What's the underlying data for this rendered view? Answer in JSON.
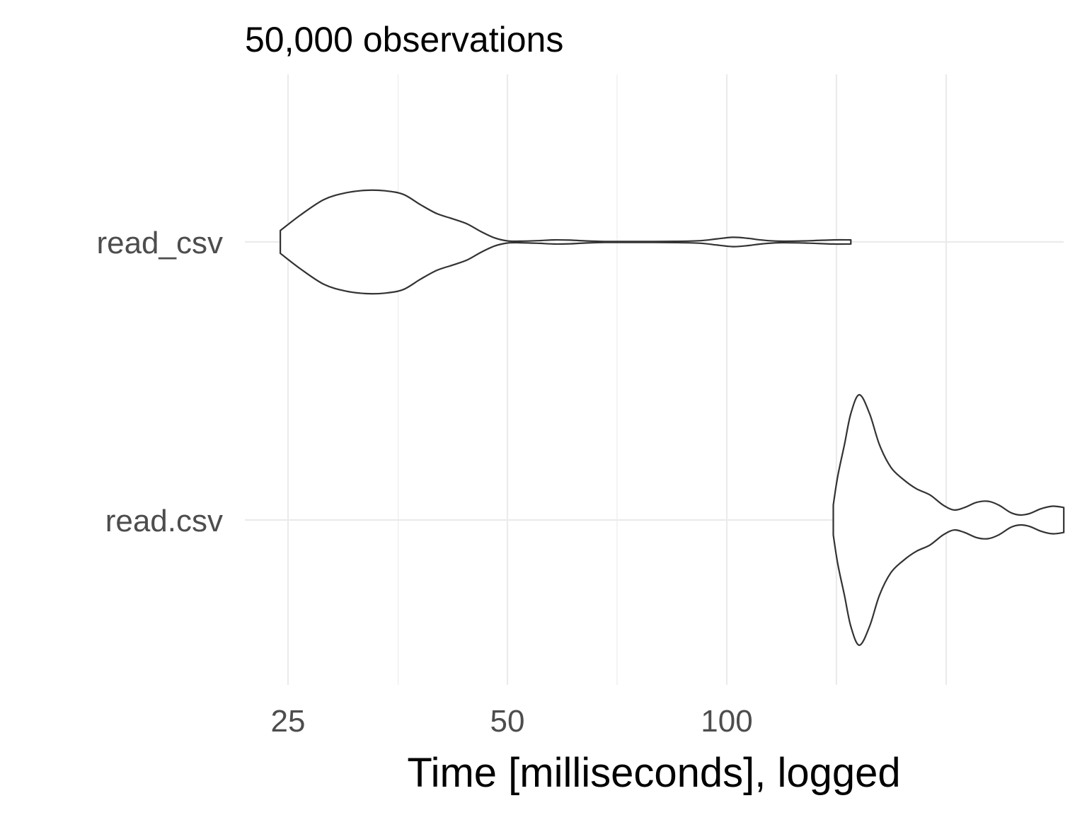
{
  "chart_data": {
    "type": "violin",
    "title": "50,000 observations",
    "xlabel": "Time [milliseconds], logged",
    "ylabel": "",
    "x_scale": "log2",
    "xlim": [
      24,
      300
    ],
    "x_ticks": [
      25,
      50,
      100
    ],
    "x_minor_ticks": [
      35.4,
      70.7,
      141.4,
      200
    ],
    "grid": true,
    "categories": [
      "read_csv",
      "read.csv"
    ],
    "series": [
      {
        "category": "read_csv",
        "min": 24.4,
        "max": 148,
        "density": [
          [
            24.4,
            0.22
          ],
          [
            26,
            0.52
          ],
          [
            28,
            0.82
          ],
          [
            30,
            0.95
          ],
          [
            32,
            1.0
          ],
          [
            34,
            0.99
          ],
          [
            36,
            0.92
          ],
          [
            38,
            0.72
          ],
          [
            40,
            0.55
          ],
          [
            42,
            0.45
          ],
          [
            44,
            0.35
          ],
          [
            46,
            0.2
          ],
          [
            48,
            0.08
          ],
          [
            50,
            0.02
          ],
          [
            52,
            0.015
          ],
          [
            55,
            0.025
          ],
          [
            58,
            0.04
          ],
          [
            61,
            0.035
          ],
          [
            64,
            0.02
          ],
          [
            68,
            0.01
          ],
          [
            75,
            0.008
          ],
          [
            85,
            0.012
          ],
          [
            92,
            0.025
          ],
          [
            97,
            0.06
          ],
          [
            102,
            0.09
          ],
          [
            107,
            0.07
          ],
          [
            112,
            0.035
          ],
          [
            118,
            0.015
          ],
          [
            128,
            0.02
          ],
          [
            140,
            0.04
          ],
          [
            148,
            0.04
          ]
        ]
      },
      {
        "category": "read.csv",
        "min": 140,
        "max": 290,
        "density": [
          [
            140,
            0.12
          ],
          [
            142,
            0.35
          ],
          [
            145,
            0.6
          ],
          [
            148,
            0.85
          ],
          [
            152,
            1.0
          ],
          [
            157,
            0.85
          ],
          [
            162,
            0.6
          ],
          [
            168,
            0.42
          ],
          [
            175,
            0.32
          ],
          [
            182,
            0.25
          ],
          [
            190,
            0.2
          ],
          [
            198,
            0.12
          ],
          [
            205,
            0.08
          ],
          [
            212,
            0.1
          ],
          [
            220,
            0.14
          ],
          [
            228,
            0.15
          ],
          [
            236,
            0.12
          ],
          [
            245,
            0.06
          ],
          [
            252,
            0.04
          ],
          [
            260,
            0.05
          ],
          [
            270,
            0.09
          ],
          [
            280,
            0.11
          ],
          [
            290,
            0.1
          ]
        ]
      }
    ]
  }
}
